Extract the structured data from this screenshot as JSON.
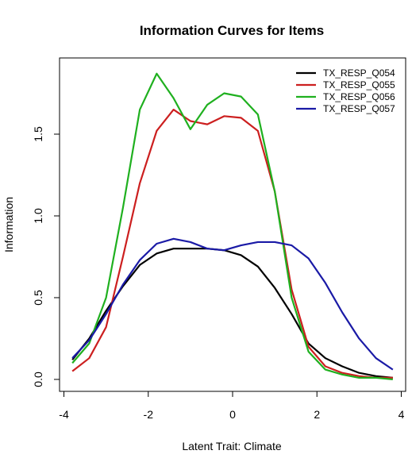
{
  "chart_data": {
    "type": "line",
    "title": "Information Curves for Items",
    "xlabel": "Latent Trait: Climate",
    "ylabel": "Information",
    "x": [
      -3.8,
      -3.4,
      -3.0,
      -2.6,
      -2.2,
      -1.8,
      -1.4,
      -1.0,
      -0.6,
      -0.2,
      0.2,
      0.6,
      1.0,
      1.4,
      1.8,
      2.2,
      2.6,
      3.0,
      3.4,
      3.8
    ],
    "series": [
      {
        "name": "TX_RESP_Q054",
        "color": "#000000",
        "values": [
          0.12,
          0.25,
          0.42,
          0.57,
          0.7,
          0.77,
          0.8,
          0.8,
          0.8,
          0.79,
          0.76,
          0.69,
          0.56,
          0.4,
          0.22,
          0.13,
          0.08,
          0.04,
          0.02,
          0.01
        ]
      },
      {
        "name": "TX_RESP_Q055",
        "color": "#cc1f1f",
        "values": [
          0.05,
          0.13,
          0.32,
          0.75,
          1.2,
          1.52,
          1.65,
          1.58,
          1.56,
          1.61,
          1.6,
          1.52,
          1.15,
          0.55,
          0.2,
          0.08,
          0.04,
          0.02,
          0.01,
          0.01
        ]
      },
      {
        "name": "TX_RESP_Q056",
        "color": "#1fb01f",
        "values": [
          0.1,
          0.22,
          0.5,
          1.05,
          1.65,
          1.87,
          1.72,
          1.53,
          1.68,
          1.75,
          1.73,
          1.62,
          1.15,
          0.5,
          0.17,
          0.06,
          0.03,
          0.01,
          0.01,
          0.0
        ]
      },
      {
        "name": "TX_RESP_Q057",
        "color": "#1a1aa6",
        "values": [
          0.13,
          0.24,
          0.4,
          0.58,
          0.73,
          0.83,
          0.86,
          0.84,
          0.8,
          0.79,
          0.82,
          0.84,
          0.84,
          0.82,
          0.74,
          0.59,
          0.41,
          0.25,
          0.13,
          0.06
        ]
      }
    ],
    "xlim": [
      -4.104,
      4.104
    ],
    "xticks": [
      -4,
      -2,
      0,
      2,
      4
    ],
    "ylim": [
      -0.073,
      1.966
    ],
    "yticks": [
      {
        "value": 0,
        "label": "0.0"
      },
      0.5,
      {
        "value": 1,
        "label": "1.0"
      },
      1.5
    ],
    "legend": "top-right",
    "grid": false
  }
}
